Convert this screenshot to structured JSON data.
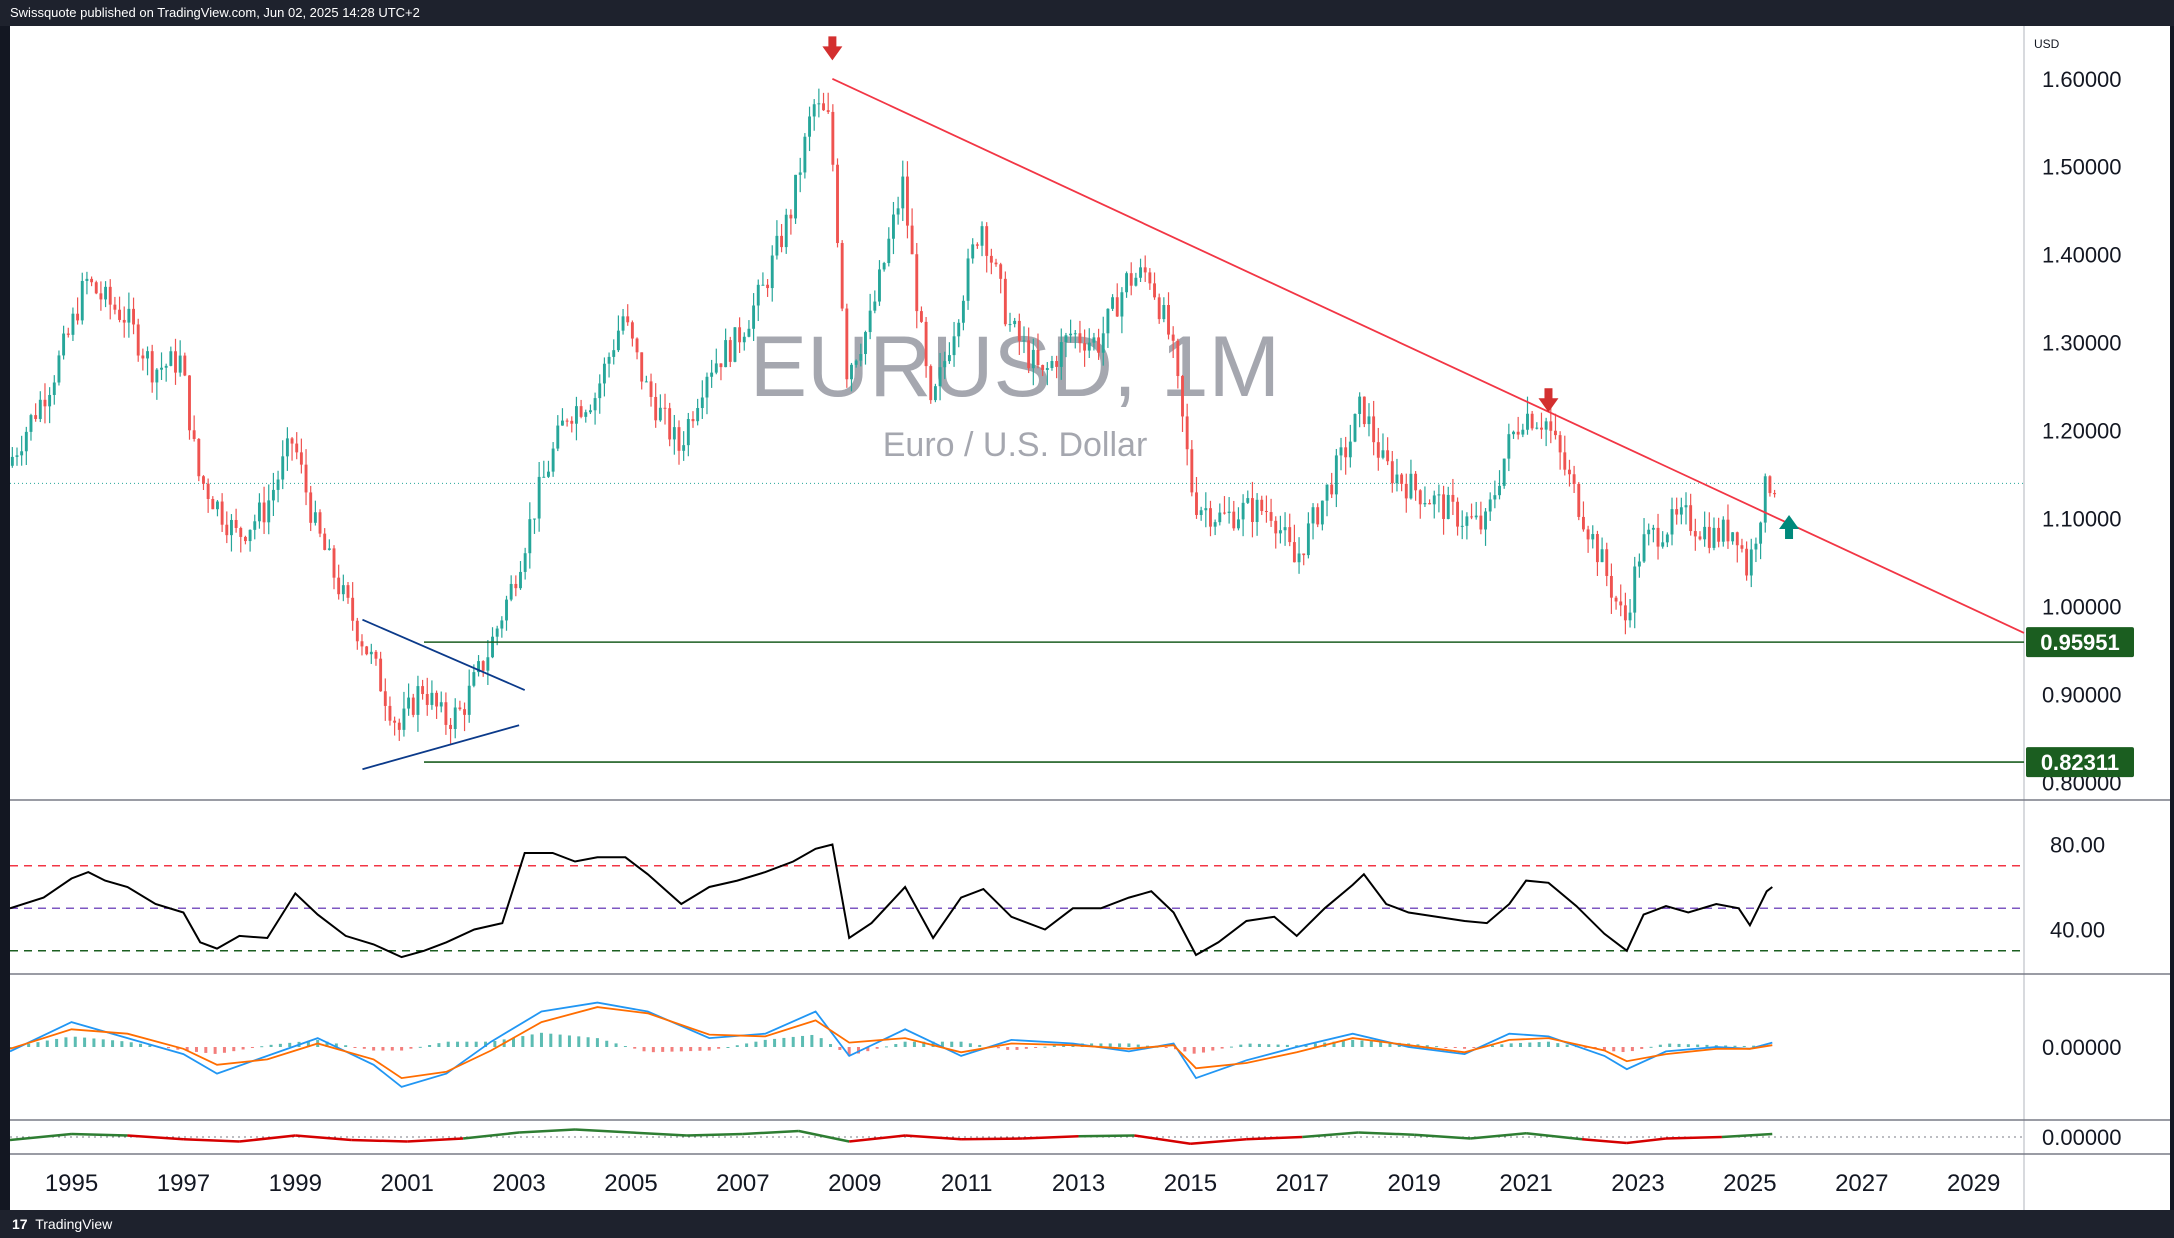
{
  "header": {
    "published_text": "Swissquote published on TradingView.com, Jun 02, 2025 14:28 UTC+2"
  },
  "footer": {
    "brand": "TradingView",
    "logo_glyph": "17"
  },
  "colors": {
    "up": "#26a69a",
    "down": "#ef5350",
    "trendline_down": "#f23645",
    "triangle_lines": "#0b3a8a",
    "support_lines": "#1b5e20",
    "rsi_line": "#000000",
    "rsi_upper_band": "#f23645",
    "rsi_mid_band": "#7e57c2",
    "rsi_lower_band": "#1b5e20",
    "macd_line": "#2196f3",
    "signal_line": "#ff6d00",
    "arrow_down": "#d32f2f",
    "arrow_up": "#00897b"
  },
  "chart_data": [
    {
      "type": "candlestick",
      "title": "EURUSD, 1M",
      "subtitle": "Euro / U.S. Dollar",
      "currency_label": "USD",
      "y_ticks": [
        "1.60000",
        "1.50000",
        "1.40000",
        "1.30000",
        "1.20000",
        "1.10000",
        "1.00000",
        "0.90000",
        "0.80000"
      ],
      "y_tick_values": [
        1.6,
        1.5,
        1.4,
        1.3,
        1.2,
        1.1,
        1.0,
        0.9,
        0.8
      ],
      "ylim": [
        0.78,
        1.66
      ],
      "x_ticks": [
        "1995",
        "1997",
        "1999",
        "2001",
        "2003",
        "2005",
        "2007",
        "2009",
        "2011",
        "2013",
        "2015",
        "2017",
        "2019",
        "2021",
        "2023",
        "2025",
        "2027",
        "2029"
      ],
      "xlim": [
        1993.9,
        2029.9
      ],
      "series_path_points": [
        [
          1993.9,
          1.16
        ],
        [
          1994.3,
          1.21
        ],
        [
          1994.7,
          1.26
        ],
        [
          1995.0,
          1.31
        ],
        [
          1995.3,
          1.37
        ],
        [
          1995.6,
          1.35
        ],
        [
          1996.0,
          1.33
        ],
        [
          1996.5,
          1.27
        ],
        [
          1997.0,
          1.28
        ],
        [
          1997.3,
          1.15
        ],
        [
          1997.6,
          1.12
        ],
        [
          1998.0,
          1.08
        ],
        [
          1998.5,
          1.11
        ],
        [
          1999.0,
          1.19
        ],
        [
          1999.4,
          1.09
        ],
        [
          1999.9,
          1.01
        ],
        [
          2000.4,
          0.94
        ],
        [
          2000.9,
          0.86
        ],
        [
          2001.3,
          0.91
        ],
        [
          2001.7,
          0.87
        ],
        [
          2002.0,
          0.88
        ],
        [
          2002.5,
          0.95
        ],
        [
          2002.9,
          1.02
        ],
        [
          2003.4,
          1.13
        ],
        [
          2003.9,
          1.22
        ],
        [
          2004.4,
          1.24
        ],
        [
          2004.9,
          1.33
        ],
        [
          2005.3,
          1.25
        ],
        [
          2005.9,
          1.18
        ],
        [
          2006.4,
          1.27
        ],
        [
          2006.9,
          1.3
        ],
        [
          2007.4,
          1.36
        ],
        [
          2007.9,
          1.45
        ],
        [
          2008.3,
          1.57
        ],
        [
          2008.6,
          1.55
        ],
        [
          2008.9,
          1.27
        ],
        [
          2009.3,
          1.32
        ],
        [
          2009.9,
          1.48
        ],
        [
          2010.4,
          1.22
        ],
        [
          2010.9,
          1.34
        ],
        [
          2011.3,
          1.44
        ],
        [
          2011.8,
          1.32
        ],
        [
          2012.4,
          1.26
        ],
        [
          2012.9,
          1.31
        ],
        [
          2013.4,
          1.3
        ],
        [
          2013.9,
          1.37
        ],
        [
          2014.3,
          1.38
        ],
        [
          2014.7,
          1.3
        ],
        [
          2015.1,
          1.12
        ],
        [
          2015.6,
          1.1
        ],
        [
          2016.0,
          1.11
        ],
        [
          2016.5,
          1.11
        ],
        [
          2016.9,
          1.05
        ],
        [
          2017.4,
          1.12
        ],
        [
          2017.9,
          1.19
        ],
        [
          2018.1,
          1.23
        ],
        [
          2018.5,
          1.16
        ],
        [
          2018.9,
          1.14
        ],
        [
          2019.4,
          1.12
        ],
        [
          2019.9,
          1.1
        ],
        [
          2020.3,
          1.09
        ],
        [
          2020.7,
          1.18
        ],
        [
          2021.0,
          1.22
        ],
        [
          2021.4,
          1.21
        ],
        [
          2021.9,
          1.13
        ],
        [
          2022.4,
          1.05
        ],
        [
          2022.8,
          0.98
        ],
        [
          2023.1,
          1.07
        ],
        [
          2023.5,
          1.09
        ],
        [
          2023.9,
          1.1
        ],
        [
          2024.4,
          1.08
        ],
        [
          2024.8,
          1.09
        ],
        [
          2025.0,
          1.04
        ],
        [
          2025.3,
          1.13
        ],
        [
          2025.4,
          1.14
        ]
      ],
      "candle_step_months": 1,
      "last_price": 1.14,
      "trendline": {
        "from": [
          2008.6,
          1.6
        ],
        "to": [
          2029.9,
          0.97
        ]
      },
      "support_levels": [
        {
          "value": 0.95951,
          "label": "0.95951",
          "from_x": 2001.3
        },
        {
          "value": 0.82311,
          "label": "0.82311",
          "from_x": 2001.3
        }
      ],
      "triangle": {
        "upper": {
          "from": [
            2000.2,
            0.985
          ],
          "to": [
            2003.1,
            0.905
          ]
        },
        "lower": {
          "from": [
            2000.2,
            0.815
          ],
          "to": [
            2003.0,
            0.865
          ]
        }
      },
      "arrows": [
        {
          "direction": "down",
          "x": 2008.6,
          "y": 1.63
        },
        {
          "direction": "down",
          "x": 2021.4,
          "y": 1.23
        },
        {
          "direction": "up",
          "x": 2025.7,
          "y": 1.095
        }
      ]
    },
    {
      "type": "line",
      "title": "",
      "y_ticks": [
        "80.00",
        "40.00"
      ],
      "y_tick_values": [
        80,
        40
      ],
      "ylim": [
        20,
        100
      ],
      "bands": [
        70,
        50,
        30
      ],
      "x": [
        1993.9,
        1994.5,
        1995.0,
        1995.3,
        1995.6,
        1996.0,
        1996.5,
        1997.0,
        1997.3,
        1997.6,
        1998.0,
        1998.5,
        1999.0,
        1999.4,
        1999.9,
        2000.4,
        2000.9,
        2001.3,
        2001.7,
        2002.2,
        2002.7,
        2003.1,
        2003.6,
        2004.0,
        2004.4,
        2004.9,
        2005.3,
        2005.9,
        2006.4,
        2006.9,
        2007.4,
        2007.9,
        2008.3,
        2008.6,
        2008.9,
        2009.3,
        2009.9,
        2010.4,
        2010.9,
        2011.3,
        2011.8,
        2012.4,
        2012.9,
        2013.4,
        2013.9,
        2014.3,
        2014.7,
        2015.1,
        2015.5,
        2016.0,
        2016.5,
        2016.9,
        2017.4,
        2017.9,
        2018.1,
        2018.5,
        2018.9,
        2019.4,
        2019.9,
        2020.3,
        2020.7,
        2021.0,
        2021.4,
        2021.9,
        2022.4,
        2022.8,
        2023.1,
        2023.5,
        2023.9,
        2024.4,
        2024.8,
        2025.0,
        2025.3,
        2025.4
      ],
      "y": [
        50,
        55,
        64,
        67,
        63,
        60,
        52,
        48,
        34,
        31,
        37,
        36,
        57,
        47,
        37,
        33,
        27,
        30,
        34,
        40,
        43,
        76,
        76,
        72,
        74,
        74,
        66,
        52,
        60,
        63,
        67,
        72,
        78,
        80,
        36,
        43,
        60,
        36,
        55,
        59,
        46,
        40,
        50,
        50,
        55,
        58,
        48,
        28,
        34,
        44,
        46,
        37,
        50,
        61,
        66,
        52,
        48,
        46,
        44,
        43,
        52,
        63,
        62,
        51,
        38,
        30,
        47,
        51,
        48,
        52,
        50,
        42,
        58,
        60
      ]
    },
    {
      "type": "bar",
      "title": "",
      "y_ticks": [
        "0.00000"
      ],
      "y_tick_values": [
        0.0
      ],
      "ylim": [
        -0.08,
        0.08
      ],
      "x": [
        1993.9,
        1995.0,
        1996.0,
        1997.0,
        1997.6,
        1998.5,
        1999.4,
        2000.4,
        2000.9,
        2001.7,
        2002.5,
        2003.4,
        2004.4,
        2005.3,
        2006.4,
        2007.4,
        2008.3,
        2008.9,
        2009.9,
        2010.9,
        2011.8,
        2012.9,
        2013.9,
        2014.7,
        2015.1,
        2016.0,
        2016.9,
        2017.9,
        2018.9,
        2019.9,
        2020.7,
        2021.4,
        2022.4,
        2022.8,
        2023.5,
        2024.4,
        2025.0,
        2025.4
      ],
      "histogram": [
        0.0,
        0.012,
        0.006,
        -0.004,
        -0.008,
        0.002,
        0.008,
        -0.004,
        -0.004,
        0.006,
        0.006,
        0.016,
        0.01,
        -0.006,
        -0.004,
        0.008,
        0.014,
        -0.01,
        0.006,
        0.006,
        -0.004,
        0.004,
        0.004,
        -0.002,
        -0.008,
        0.004,
        0.002,
        0.008,
        0.004,
        -0.002,
        0.004,
        0.006,
        -0.004,
        -0.006,
        0.004,
        0.002,
        0.001,
        0.004
      ],
      "macd": [
        -0.005,
        0.028,
        0.01,
        -0.008,
        -0.03,
        -0.01,
        0.01,
        -0.02,
        -0.045,
        -0.03,
        0.006,
        0.04,
        0.05,
        0.04,
        0.01,
        0.015,
        0.04,
        -0.01,
        0.02,
        -0.01,
        0.008,
        0.004,
        -0.005,
        0.004,
        -0.035,
        -0.015,
        0.0,
        0.015,
        0.0,
        -0.008,
        0.015,
        0.012,
        -0.01,
        -0.025,
        -0.005,
        0.0,
        -0.002,
        0.005
      ],
      "signal": [
        -0.002,
        0.02,
        0.015,
        -0.002,
        -0.02,
        -0.014,
        0.004,
        -0.014,
        -0.035,
        -0.028,
        -0.004,
        0.028,
        0.045,
        0.038,
        0.014,
        0.012,
        0.03,
        0.005,
        0.01,
        -0.006,
        0.004,
        0.002,
        -0.002,
        0.002,
        -0.024,
        -0.018,
        -0.006,
        0.01,
        0.002,
        -0.006,
        0.008,
        0.01,
        -0.004,
        -0.016,
        -0.008,
        -0.002,
        -0.002,
        0.002
      ]
    },
    {
      "type": "area",
      "title": "",
      "y_ticks": [
        "0.00000"
      ],
      "y_tick_values": [
        0.0
      ],
      "ylim": [
        -0.2,
        0.2
      ],
      "x": [
        1993.9,
        1995.0,
        1996.0,
        1997.0,
        1998.0,
        1999.0,
        2000.0,
        2001.0,
        2002.0,
        2003.0,
        2004.0,
        2005.0,
        2006.0,
        2007.0,
        2008.0,
        2008.9,
        2009.9,
        2010.9,
        2012.0,
        2013.0,
        2014.0,
        2015.0,
        2016.0,
        2017.0,
        2018.0,
        2019.0,
        2020.0,
        2021.0,
        2022.0,
        2022.8,
        2023.5,
        2024.5,
        2025.4
      ],
      "y": [
        -0.04,
        0.04,
        0.02,
        -0.03,
        -0.06,
        0.02,
        -0.04,
        -0.06,
        -0.02,
        0.06,
        0.1,
        0.06,
        0.02,
        0.04,
        0.08,
        -0.06,
        0.02,
        -0.03,
        -0.02,
        0.01,
        0.02,
        -0.09,
        -0.03,
        0.0,
        0.06,
        0.03,
        -0.02,
        0.05,
        -0.03,
        -0.08,
        -0.02,
        0.0,
        0.04
      ]
    }
  ]
}
